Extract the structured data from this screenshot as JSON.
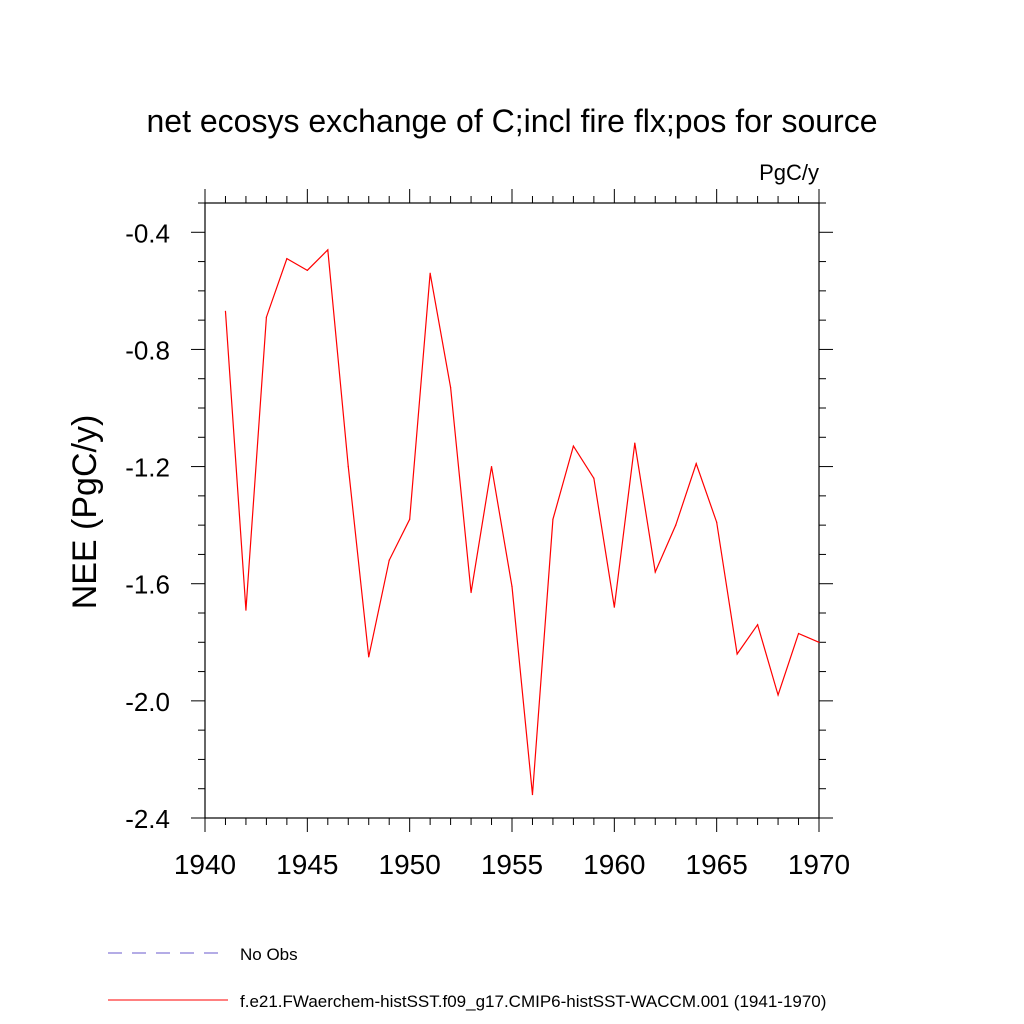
{
  "chart_data": {
    "type": "line",
    "title": "net ecosys exchange of C;incl fire flx;pos for source",
    "units": "PgC/y",
    "ylabel": "NEE  (PgC/y)",
    "xlabel": "",
    "xlim": [
      1940,
      1970
    ],
    "ylim": [
      -2.4,
      -0.3
    ],
    "x_ticks": [
      1940,
      1945,
      1950,
      1955,
      1960,
      1965,
      1970
    ],
    "x_tick_labels": [
      "1940",
      "1945",
      "1950",
      "1955",
      "1960",
      "1965",
      "1970"
    ],
    "y_ticks": [
      -0.4,
      -0.8,
      -1.2,
      -1.6,
      -2.0,
      -2.4
    ],
    "y_tick_labels": [
      "-0.4",
      "-0.8",
      "-1.2",
      "-1.6",
      "-2.0",
      "-2.4"
    ],
    "grid": false,
    "legend_position": "bottom",
    "series": [
      {
        "name": "No Obs",
        "color": "#6a5acd",
        "style": "dashed",
        "x": [],
        "values": []
      },
      {
        "name": "f.e21.FWaerchem-histSST.f09_g17.CMIP6-histSST-WACCM.001 (1941-1970)",
        "color": "#ff0000",
        "style": "solid",
        "x": [
          1941,
          1942,
          1943,
          1944,
          1945,
          1946,
          1947,
          1948,
          1949,
          1950,
          1951,
          1952,
          1953,
          1954,
          1955,
          1956,
          1957,
          1958,
          1959,
          1960,
          1961,
          1962,
          1963,
          1964,
          1965,
          1966,
          1967,
          1968,
          1969,
          1970
        ],
        "values": [
          -0.67,
          -1.69,
          -0.69,
          -0.49,
          -0.53,
          -0.46,
          -1.2,
          -1.85,
          -1.52,
          -1.38,
          -0.54,
          -0.93,
          -1.63,
          -1.2,
          -1.61,
          -2.32,
          -1.38,
          -1.13,
          -1.24,
          -1.68,
          -1.12,
          -1.56,
          -1.4,
          -1.19,
          -1.39,
          -1.84,
          -1.74,
          -1.98,
          -1.77,
          -1.8
        ]
      }
    ]
  }
}
